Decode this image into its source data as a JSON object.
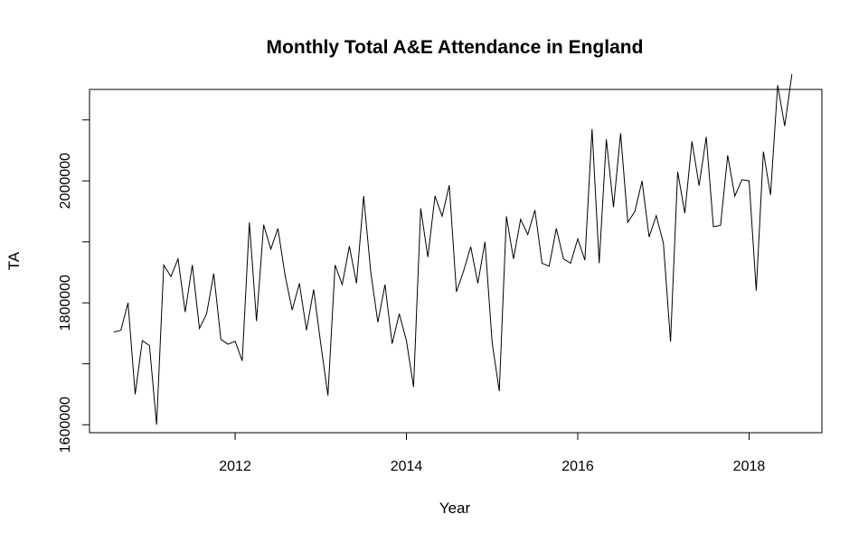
{
  "chart_data": {
    "type": "line",
    "title": "Monthly Total A&E Attendance in England",
    "xlabel": "Year",
    "ylabel": "TA",
    "xlim": [
      2010.3,
      2018.85
    ],
    "ylim": [
      1587000,
      2150000
    ],
    "x_ticks": [
      2012,
      2014,
      2016,
      2018
    ],
    "x_tick_labels": [
      "2012",
      "2014",
      "2016",
      "2018"
    ],
    "y_ticks": [
      1600000,
      1700000,
      1800000,
      1900000,
      2000000,
      2100000
    ],
    "y_tick_labels": [
      "1600000",
      "",
      "1800000",
      "",
      "2000000",
      ""
    ],
    "grid": false,
    "legend": "none",
    "line_color": "#000000",
    "series": [
      {
        "start": "2010-08",
        "frequency": "monthly",
        "values": [
          1752000,
          1755000,
          1800000,
          1650000,
          1738000,
          1730000,
          1600000,
          1862000,
          1843000,
          1872000,
          1785000,
          1862000,
          1758000,
          1782000,
          1848000,
          1740000,
          1732000,
          1737000,
          1705000,
          1932000,
          1770000,
          1928000,
          1888000,
          1922000,
          1845000,
          1788000,
          1832000,
          1755000,
          1822000,
          1732000,
          1648000,
          1862000,
          1830000,
          1893000,
          1832000,
          1975000,
          1850000,
          1768000,
          1830000,
          1733000,
          1782000,
          1738000,
          1662000,
          1955000,
          1875000,
          1975000,
          1942000,
          1993000,
          1818000,
          1852000,
          1892000,
          1832000,
          1900000,
          1735000,
          1655000,
          1942000,
          1872000,
          1937000,
          1912000,
          1952000,
          1865000,
          1860000,
          1922000,
          1872000,
          1865000,
          1905000,
          1870000,
          2085000,
          1865000,
          2068000,
          1957000,
          2078000,
          1932000,
          1950000,
          2000000,
          1908000,
          1943000,
          1898000,
          1736000,
          2015000,
          1947000,
          2065000,
          1992000,
          2072000,
          1925000,
          1927000,
          2042000,
          1975000,
          2002000,
          2000000,
          1820000,
          2048000,
          1977000,
          2157000,
          2090000,
          2175000
        ]
      }
    ]
  }
}
